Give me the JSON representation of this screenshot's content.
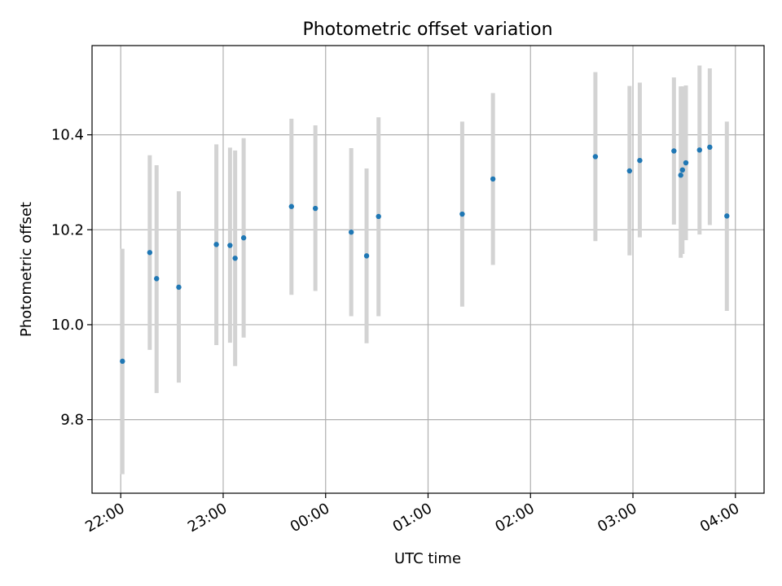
{
  "chart_data": {
    "type": "scatter",
    "title": "Photometric offset variation",
    "xlabel": "UTC time",
    "ylabel": "Photometric offset",
    "x_axis": {
      "unit": "hours since 22:00 UTC",
      "range": [
        -0.28,
        6.28
      ],
      "ticks": [
        {
          "value": 0,
          "label": "22:00"
        },
        {
          "value": 1,
          "label": "23:00"
        },
        {
          "value": 2,
          "label": "00:00"
        },
        {
          "value": 3,
          "label": "01:00"
        },
        {
          "value": 4,
          "label": "02:00"
        },
        {
          "value": 5,
          "label": "03:00"
        },
        {
          "value": 6,
          "label": "04:00"
        }
      ]
    },
    "y_axis": {
      "range": [
        9.645,
        10.588
      ],
      "ticks": [
        9.8,
        10.0,
        10.2,
        10.4
      ],
      "tick_labels": [
        "9.8",
        "10.0",
        "10.2",
        "10.4"
      ]
    },
    "grid": true,
    "colors": {
      "point": "#1f77b4",
      "errorbar": "#d3d3d3",
      "grid": "#b0b0b0"
    },
    "points": [
      {
        "time": "22:01",
        "y": 9.923,
        "lo": 9.685,
        "hi": 10.16
      },
      {
        "time": "22:17",
        "y": 10.152,
        "lo": 9.947,
        "hi": 10.357
      },
      {
        "time": "22:21",
        "y": 10.097,
        "lo": 9.856,
        "hi": 10.336
      },
      {
        "time": "22:34",
        "y": 10.079,
        "lo": 9.878,
        "hi": 10.281
      },
      {
        "time": "22:56",
        "y": 10.169,
        "lo": 9.957,
        "hi": 10.38
      },
      {
        "time": "23:04",
        "y": 10.167,
        "lo": 9.962,
        "hi": 10.373
      },
      {
        "time": "23:07",
        "y": 10.14,
        "lo": 9.913,
        "hi": 10.367
      },
      {
        "time": "23:12",
        "y": 10.183,
        "lo": 9.973,
        "hi": 10.393
      },
      {
        "time": "23:40",
        "y": 10.249,
        "lo": 10.063,
        "hi": 10.434
      },
      {
        "time": "23:54",
        "y": 10.245,
        "lo": 10.071,
        "hi": 10.42
      },
      {
        "time": "00:15",
        "y": 10.195,
        "lo": 10.018,
        "hi": 10.372
      },
      {
        "time": "00:24",
        "y": 10.145,
        "lo": 9.961,
        "hi": 10.329
      },
      {
        "time": "00:31",
        "y": 10.228,
        "lo": 10.018,
        "hi": 10.437
      },
      {
        "time": "01:20",
        "y": 10.233,
        "lo": 10.038,
        "hi": 10.428
      },
      {
        "time": "01:38",
        "y": 10.307,
        "lo": 10.126,
        "hi": 10.488
      },
      {
        "time": "02:38",
        "y": 10.354,
        "lo": 10.176,
        "hi": 10.532
      },
      {
        "time": "02:58",
        "y": 10.324,
        "lo": 10.146,
        "hi": 10.503
      },
      {
        "time": "03:04",
        "y": 10.346,
        "lo": 10.184,
        "hi": 10.51
      },
      {
        "time": "03:24",
        "y": 10.366,
        "lo": 10.211,
        "hi": 10.521
      },
      {
        "time": "03:28",
        "y": 10.315,
        "lo": 10.141,
        "hi": 10.502
      },
      {
        "time": "03:29",
        "y": 10.326,
        "lo": 10.149,
        "hi": 10.502
      },
      {
        "time": "03:31",
        "y": 10.341,
        "lo": 10.178,
        "hi": 10.504
      },
      {
        "time": "03:39",
        "y": 10.368,
        "lo": 10.19,
        "hi": 10.546
      },
      {
        "time": "03:45",
        "y": 10.374,
        "lo": 10.21,
        "hi": 10.54
      },
      {
        "time": "03:55",
        "y": 10.229,
        "lo": 10.029,
        "hi": 10.428
      }
    ]
  }
}
